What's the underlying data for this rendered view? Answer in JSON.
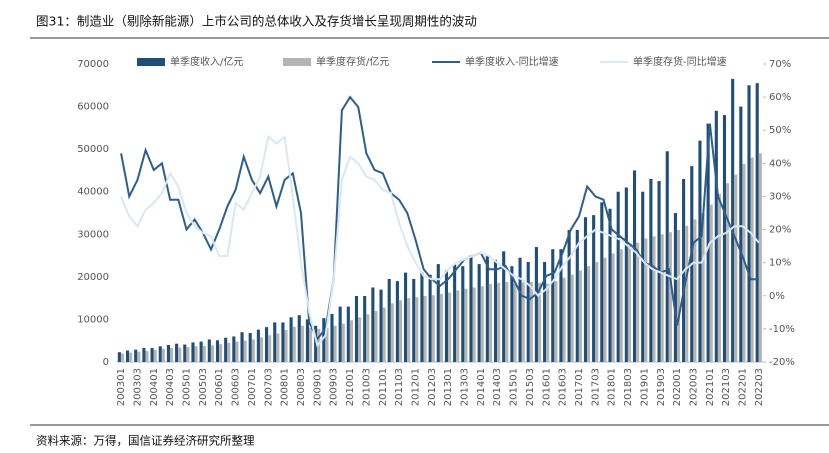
{
  "chart_data": {
    "type": "bar_line",
    "title": "图31：制造业（剔除新能源）上市公司的总体收入及存货增长呈现周期性的波动",
    "source": "资料来源：万得，国信证券经济研究所整理",
    "categories": [
      "200301",
      null,
      "200303",
      null,
      "200401",
      null,
      "200403",
      null,
      "200501",
      null,
      "200503",
      null,
      "200601",
      null,
      "200603",
      null,
      "200701",
      null,
      "200703",
      null,
      "200801",
      null,
      "200803",
      null,
      "200901",
      null,
      "200903",
      null,
      "201001",
      null,
      "201003",
      null,
      "201101",
      null,
      "201103",
      null,
      "201201",
      null,
      "201203",
      null,
      "201301",
      null,
      "201303",
      null,
      "201401",
      null,
      "201403",
      null,
      "201501",
      null,
      "201503",
      null,
      "201601",
      null,
      "201603",
      null,
      "201701",
      null,
      "201703",
      null,
      "201801",
      null,
      "201803",
      null,
      "201901",
      null,
      "201903",
      null,
      "202001",
      null,
      "202003",
      null,
      "202101",
      null,
      "202103",
      null,
      "202201",
      null,
      "202203"
    ],
    "ylim": [
      0,
      70000
    ],
    "yticks": [
      0,
      10000,
      20000,
      30000,
      40000,
      50000,
      60000,
      70000
    ],
    "y2lim": [
      -20,
      70
    ],
    "y2ticks": [
      {
        "value": -20,
        "label": "-20%"
      },
      {
        "value": -10,
        "label": "-10%"
      },
      {
        "value": 0,
        "label": "0%"
      },
      {
        "value": 10,
        "label": "10%"
      },
      {
        "value": 20,
        "label": "20%"
      },
      {
        "value": 30,
        "label": "30%"
      },
      {
        "value": 40,
        "label": "40%"
      },
      {
        "value": 50,
        "label": "50%"
      },
      {
        "value": 60,
        "label": "60%"
      },
      {
        "value": 70,
        "label": "70%"
      }
    ],
    "series": [
      {
        "name": "单季度收入/亿元",
        "kind": "bar",
        "color": "#1f4e79",
        "values": [
          2300,
          2700,
          2900,
          3300,
          3300,
          3700,
          4000,
          4300,
          4100,
          4600,
          4800,
          5300,
          5100,
          5700,
          6000,
          7000,
          6800,
          7600,
          8200,
          9300,
          9300,
          10500,
          11000,
          10000,
          8500,
          10300,
          11300,
          13000,
          13000,
          15500,
          15500,
          17500,
          17000,
          19500,
          19000,
          21000,
          19500,
          21000,
          20500,
          23000,
          21500,
          23000,
          22500,
          25000,
          23000,
          25000,
          24000,
          26000,
          22500,
          24500,
          23500,
          27000,
          23500,
          26500,
          26500,
          31000,
          31000,
          34000,
          34500,
          37500,
          36000,
          40000,
          41000,
          45000,
          40000,
          43000,
          42500,
          49500,
          35000,
          43000,
          46000,
          52000,
          56000,
          59000,
          58000,
          66500,
          60000,
          65000,
          65500
        ]
      },
      {
        "name": "单季度存货/亿元",
        "kind": "bar",
        "color": "#b4b4b4",
        "values": [
          2000,
          2200,
          2400,
          2600,
          2800,
          3100,
          3300,
          3400,
          3500,
          3700,
          3800,
          3900,
          4200,
          4500,
          4800,
          5000,
          5300,
          5800,
          6300,
          6700,
          7500,
          8300,
          8500,
          8000,
          7800,
          8000,
          8500,
          9000,
          9800,
          10500,
          11200,
          12000,
          12800,
          13800,
          14500,
          15000,
          15200,
          15500,
          15700,
          16000,
          16300,
          16800,
          17200,
          17500,
          17800,
          18300,
          18600,
          18800,
          18500,
          18700,
          18800,
          18600,
          18400,
          19000,
          19800,
          20500,
          21500,
          22500,
          23500,
          24500,
          25500,
          26500,
          27500,
          28000,
          29000,
          29500,
          30000,
          30500,
          31000,
          32000,
          33500,
          35000,
          37000,
          39500,
          42000,
          44000,
          46500,
          48000,
          49000
        ]
      },
      {
        "name": "单季度收入-同比增速",
        "kind": "line",
        "axis": "y2",
        "color": "#2e5e8e",
        "values": [
          43,
          30,
          35,
          44,
          38,
          40,
          29,
          29,
          20,
          23,
          19,
          14,
          20,
          27,
          32,
          42,
          35,
          31,
          36,
          27,
          35,
          37,
          25,
          -8,
          -13,
          -10,
          5,
          56,
          60,
          57,
          43,
          38,
          37,
          31,
          29,
          25,
          17,
          8,
          5,
          3,
          5,
          8,
          11,
          12,
          13,
          8,
          8,
          9,
          5,
          0,
          -1,
          1,
          6,
          7,
          13,
          20,
          24,
          33,
          30,
          29,
          20,
          18,
          16,
          14,
          10,
          9,
          7,
          8,
          -9,
          4,
          16,
          18,
          52,
          30,
          24,
          18,
          12,
          5,
          5
        ]
      },
      {
        "name": "单季度存货-同比增速",
        "kind": "line",
        "axis": "y2",
        "color": "#d9e8f5",
        "values": [
          30,
          24,
          21,
          26,
          28,
          31,
          37,
          33,
          25,
          21,
          19,
          18,
          12,
          12,
          28,
          26,
          31,
          36,
          48,
          46,
          48,
          30,
          10,
          -5,
          -15,
          -12,
          5,
          35,
          42,
          40,
          36,
          35,
          32,
          31,
          22,
          15,
          10,
          6,
          5,
          5,
          8,
          10,
          11,
          12,
          13,
          12,
          10,
          8,
          6,
          5,
          3,
          0,
          2,
          5,
          9,
          12,
          16,
          18,
          20,
          19,
          18,
          17,
          15,
          13,
          10,
          8,
          7,
          6,
          5,
          8,
          10,
          10,
          16,
          18,
          19,
          21,
          21,
          19,
          16
        ]
      }
    ]
  }
}
